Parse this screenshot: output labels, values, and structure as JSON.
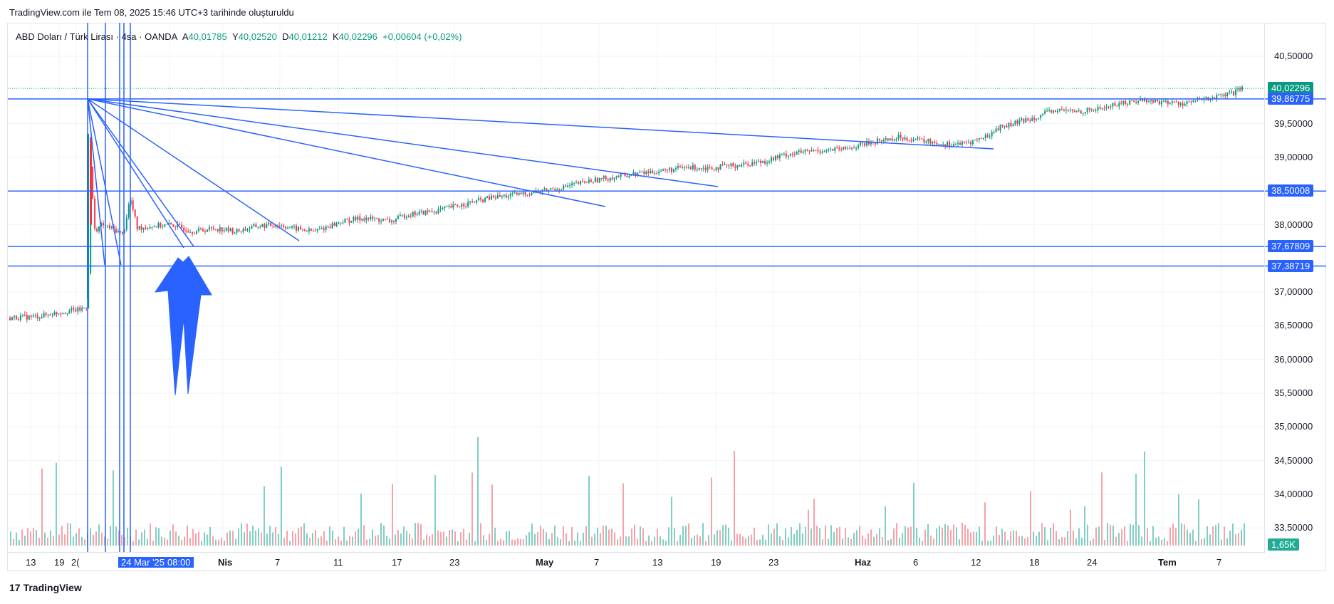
{
  "header": {
    "note": "TradingView.com ile Tem 08, 2025 15:46 UTC+3 tarihinde oluşturuldu"
  },
  "legend": {
    "symbol": "ABD Doları / Türk Lirası · 4sa · OANDA",
    "open_label": "A",
    "open_value": "40,01785",
    "high_label": "Y",
    "high_value": "40,02520",
    "low_label": "D",
    "low_value": "40,01212",
    "close_label": "K",
    "close_value": "40,02296",
    "change": "+0,00604 (+0,02%)"
  },
  "footer": {
    "logo_text": "TradingView",
    "logo_mark": "17"
  },
  "colors": {
    "up": "#089981",
    "down": "#f23645",
    "drawing": "#2962ff",
    "volume_up": "#7fcfc2",
    "volume_down": "#f7a1a8",
    "grid": "#f0f3fa"
  },
  "chart_data": {
    "type": "candlestick",
    "title": "ABD Doları / Türk Lirası · 4sa · OANDA",
    "y_axis": {
      "ylim": [
        33.2,
        40.8
      ],
      "ticks": [
        {
          "value": 40.5,
          "label": "40,50000"
        },
        {
          "value": 39.5,
          "label": "39,50000"
        },
        {
          "value": 39.0,
          "label": "39,00000"
        },
        {
          "value": 38.0,
          "label": "38,00000"
        },
        {
          "value": 37.0,
          "label": "37,00000"
        },
        {
          "value": 36.5,
          "label": "36,50000"
        },
        {
          "value": 36.0,
          "label": "36,00000"
        },
        {
          "value": 35.5,
          "label": "35,50000"
        },
        {
          "value": 35.0,
          "label": "35,00000"
        },
        {
          "value": 34.5,
          "label": "34,50000"
        },
        {
          "value": 34.0,
          "label": "34,00000"
        },
        {
          "value": 33.5,
          "label": "33,50000"
        }
      ]
    },
    "x_axis": {
      "ticks": [
        {
          "pos": 30,
          "label": "13",
          "bold": false
        },
        {
          "pos": 70,
          "label": "19",
          "bold": false
        },
        {
          "pos": 94,
          "label": "2(",
          "bold": false
        },
        {
          "pos": 160,
          "label": "24 Mar '25",
          "bold": false,
          "highlight": true
        },
        {
          "pos": 225,
          "label": "08:00",
          "bold": false,
          "highlight": true
        },
        {
          "pos": 300,
          "label": "Nis",
          "bold": true
        },
        {
          "pos": 380,
          "label": "7",
          "bold": false
        },
        {
          "pos": 462,
          "label": "11",
          "bold": false
        },
        {
          "pos": 544,
          "label": "17",
          "bold": false
        },
        {
          "pos": 625,
          "label": "23",
          "bold": false
        },
        {
          "pos": 746,
          "label": "May",
          "bold": true
        },
        {
          "pos": 828,
          "label": "7",
          "bold": false
        },
        {
          "pos": 910,
          "label": "13",
          "bold": false
        },
        {
          "pos": 992,
          "label": "19",
          "bold": false
        },
        {
          "pos": 1073,
          "label": "23",
          "bold": false
        },
        {
          "pos": 1194,
          "label": "Haz",
          "bold": true
        },
        {
          "pos": 1276,
          "label": "6",
          "bold": false
        },
        {
          "pos": 1357,
          "label": "12",
          "bold": false
        },
        {
          "pos": 1439,
          "label": "18",
          "bold": false
        },
        {
          "pos": 1520,
          "label": "24",
          "bold": false
        },
        {
          "pos": 1620,
          "label": "Tem",
          "bold": true
        },
        {
          "pos": 1702,
          "label": "7",
          "bold": false
        }
      ]
    },
    "price_series": {
      "description": "USD/TRY 4h closes (approx.)",
      "points": [
        [
          0,
          36.62
        ],
        [
          40,
          36.64
        ],
        [
          60,
          36.68
        ],
        [
          80,
          36.72
        ],
        [
          100,
          36.74
        ],
        [
          110,
          36.8
        ],
        [
          115,
          39.35
        ],
        [
          118,
          37.9
        ],
        [
          130,
          38.0
        ],
        [
          150,
          37.92
        ],
        [
          160,
          37.85
        ],
        [
          170,
          38.4
        ],
        [
          180,
          37.95
        ],
        [
          200,
          37.98
        ],
        [
          230,
          38.0
        ],
        [
          260,
          37.9
        ],
        [
          290,
          37.95
        ],
        [
          320,
          37.9
        ],
        [
          350,
          37.98
        ],
        [
          380,
          38.0
        ],
        [
          400,
          37.95
        ],
        [
          430,
          37.9
        ],
        [
          470,
          38.05
        ],
        [
          500,
          38.1
        ],
        [
          540,
          38.05
        ],
        [
          560,
          38.15
        ],
        [
          600,
          38.2
        ],
        [
          640,
          38.3
        ],
        [
          680,
          38.4
        ],
        [
          720,
          38.45
        ],
        [
          750,
          38.5
        ],
        [
          780,
          38.55
        ],
        [
          820,
          38.65
        ],
        [
          850,
          38.7
        ],
        [
          880,
          38.75
        ],
        [
          920,
          38.8
        ],
        [
          960,
          38.85
        ],
        [
          1000,
          38.85
        ],
        [
          1040,
          38.9
        ],
        [
          1070,
          38.95
        ],
        [
          1100,
          39.05
        ],
        [
          1140,
          39.1
        ],
        [
          1180,
          39.12
        ],
        [
          1210,
          39.2
        ],
        [
          1230,
          39.25
        ],
        [
          1260,
          39.3
        ],
        [
          1290,
          39.25
        ],
        [
          1320,
          39.2
        ],
        [
          1350,
          39.2
        ],
        [
          1380,
          39.3
        ],
        [
          1400,
          39.45
        ],
        [
          1420,
          39.5
        ],
        [
          1450,
          39.6
        ],
        [
          1480,
          39.7
        ],
        [
          1510,
          39.68
        ],
        [
          1540,
          39.72
        ],
        [
          1570,
          39.8
        ],
        [
          1600,
          39.85
        ],
        [
          1630,
          39.82
        ],
        [
          1660,
          39.8
        ],
        [
          1700,
          39.88
        ],
        [
          1730,
          39.95
        ],
        [
          1745,
          40.02
        ]
      ]
    },
    "horizontal_levels": [
      {
        "value": 40.02296,
        "label": "40,02296",
        "kind": "last_price"
      },
      {
        "value": 39.86775,
        "label": "39,86775",
        "kind": "drawing"
      },
      {
        "value": 38.50008,
        "label": "38,50008",
        "kind": "drawing"
      },
      {
        "value": 37.67809,
        "label": "37,67809",
        "kind": "drawing"
      },
      {
        "value": 37.38719,
        "label": "37,38719",
        "kind": "drawing"
      }
    ],
    "volume": {
      "last_label": "1,65K"
    }
  }
}
